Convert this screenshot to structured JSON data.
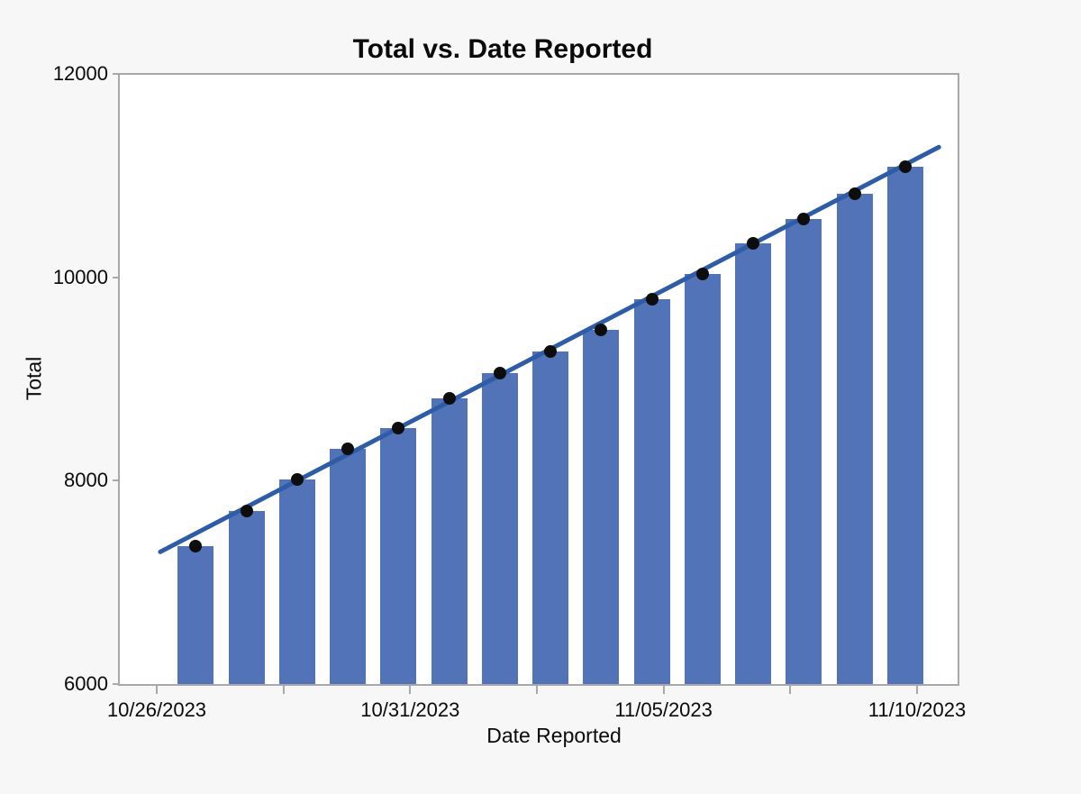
{
  "page": {
    "background_color": "#f7f7f7",
    "plot_background_color": "#ffffff",
    "frame_color": "#a8a8a8"
  },
  "chart_data": {
    "type": "bar",
    "title": "Total vs. Date Reported",
    "xlabel": "Date Reported",
    "ylabel": "Total",
    "ylim": [
      6000,
      12000
    ],
    "y_ticks": [
      6000,
      8000,
      10000,
      12000
    ],
    "x_axis": {
      "start_date": "10/26/2023",
      "end_date": "11/10/2023",
      "major_tick_labels": [
        "10/26/2023",
        "10/31/2023",
        "11/05/2023",
        "11/10/2023"
      ],
      "major_tick_days": [
        0,
        5,
        10,
        15
      ],
      "minor_tick_days": [
        2.5,
        7.5,
        12.5
      ]
    },
    "categories": [
      "10/27/2023",
      "10/28/2023",
      "10/29/2023",
      "10/30/2023",
      "10/31/2023",
      "11/01/2023",
      "11/02/2023",
      "11/03/2023",
      "11/04/2023",
      "11/05/2023",
      "11/06/2023",
      "11/07/2023",
      "11/08/2023",
      "11/09/2023",
      "11/10/2023"
    ],
    "category_day_offsets": [
      1,
      2,
      3,
      4,
      5,
      6,
      7,
      8,
      9,
      10,
      11,
      12,
      13,
      14,
      15
    ],
    "series": [
      {
        "name": "Total bars",
        "type": "bar",
        "color": "#5373b9",
        "values": [
          7360,
          7700,
          8010,
          8310,
          8520,
          8810,
          9060,
          9270,
          9480,
          9780,
          10030,
          10330,
          10570,
          10820,
          11090
        ]
      },
      {
        "name": "Total points",
        "type": "scatter",
        "color": "#0d0d0d",
        "values": [
          7360,
          7700,
          8010,
          8310,
          8520,
          8810,
          9060,
          9270,
          9480,
          9780,
          10030,
          10330,
          10570,
          10820,
          11090
        ]
      },
      {
        "name": "Linear trend line",
        "type": "line",
        "color": "#2e5ca6",
        "start": {
          "day_offset": 0.07,
          "value": 7300
        },
        "end": {
          "day_offset": 15.43,
          "value": 11280
        }
      }
    ],
    "grid": false,
    "legend_position": "none"
  }
}
